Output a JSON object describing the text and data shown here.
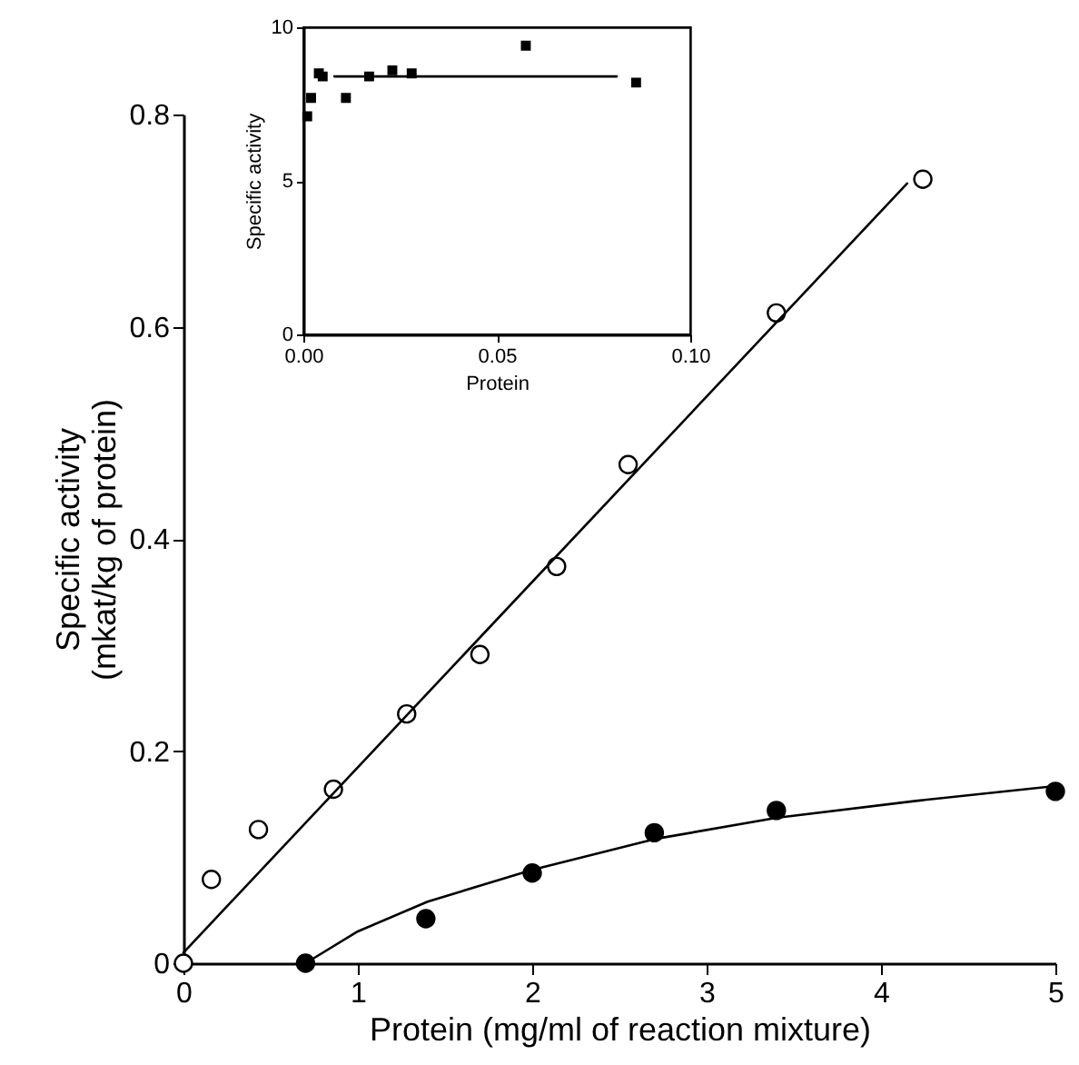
{
  "chart_data": [
    {
      "type": "scatter",
      "xlabel": "Protein (mg/ml of reaction mixture)",
      "ylabel": "Specific activity\n(mkat/kg of protein)",
      "xlim": [
        0,
        5
      ],
      "ylim": [
        0,
        0.8
      ],
      "xticks": [
        0,
        1,
        2,
        3,
        4,
        5
      ],
      "yticks": [
        0,
        0.2,
        0.4,
        0.6,
        0.8
      ],
      "grid": false,
      "series": [
        {
          "type": "scatter",
          "marker": "circle",
          "color": "#000000",
          "x": [
            0,
            0.16,
            0.43,
            0.86,
            1.28,
            1.7,
            2.14,
            2.55,
            3.4,
            4.24
          ],
          "values": [
            0,
            0.079,
            0.126,
            0.164,
            0.235,
            0.291,
            0.374,
            0.47,
            0.613,
            0.739
          ]
        },
        {
          "type": "scatter",
          "marker": "circle",
          "color": "#000000",
          "x": [
            0.7,
            1.39,
            2.0,
            2.7,
            3.4,
            5.0
          ],
          "values": [
            0,
            0.042,
            0.085,
            0.123,
            0.144,
            0.162
          ]
        },
        {
          "type": "line",
          "marker": "none",
          "line_style": "solid",
          "color": "#000000",
          "x": [
            0,
            4.15
          ],
          "values": [
            0.01,
            0.735
          ]
        },
        {
          "type": "line",
          "marker": "none",
          "line_style": "solid",
          "color": "#000000",
          "x": [
            0.7,
            1.0,
            1.4,
            2.0,
            2.7,
            3.4,
            4.2,
            5.0
          ],
          "values": [
            0,
            0.03,
            0.058,
            0.088,
            0.117,
            0.137,
            0.153,
            0.167
          ]
        }
      ]
    },
    {
      "type": "scatter",
      "xlabel": "Protein",
      "ylabel": "Specific activity",
      "xlim": [
        0,
        0.1
      ],
      "ylim": [
        0,
        10
      ],
      "xticks": [
        {
          "value": 0,
          "label": "0.00"
        },
        0.05,
        {
          "value": 0.1,
          "label": "0.10"
        }
      ],
      "yticks": [
        0,
        5,
        10
      ],
      "grid": false,
      "series": [
        {
          "type": "scatter",
          "marker": "square",
          "color": "#000000",
          "x": [
            0.001,
            0.002,
            0.004,
            0.005,
            0.011,
            0.017,
            0.023,
            0.028,
            0.0575,
            0.086
          ],
          "values": [
            7.1,
            7.7,
            8.5,
            8.4,
            7.7,
            8.4,
            8.6,
            8.5,
            9.4,
            8.2
          ]
        },
        {
          "type": "line",
          "marker": "none",
          "line_style": "solid",
          "color": "#000000",
          "x": [
            0.008,
            0.081
          ],
          "values": [
            8.4,
            8.4
          ]
        }
      ]
    }
  ]
}
